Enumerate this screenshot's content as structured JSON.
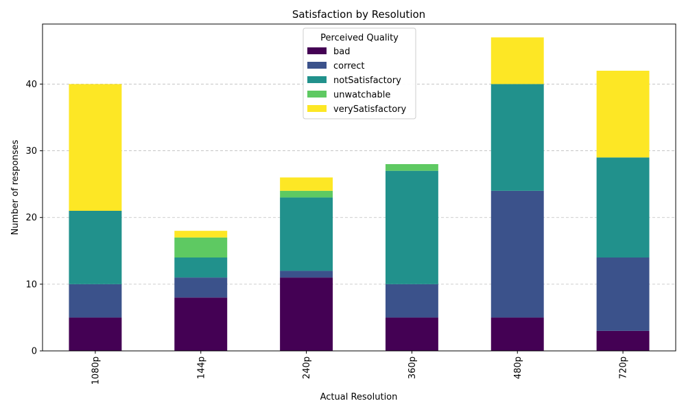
{
  "chart_data": {
    "type": "bar",
    "stacked": true,
    "title": "Satisfaction by Resolution",
    "xlabel": "Actual Resolution",
    "ylabel": "Number of responses",
    "categories": [
      "1080p",
      "144p",
      "240p",
      "360p",
      "480p",
      "720p"
    ],
    "ylim": [
      0,
      49
    ],
    "yticks": [
      0,
      10,
      20,
      30,
      40
    ],
    "grid": "horizontal dashed",
    "legend": {
      "title": "Perceived Quality",
      "placement": "top-center"
    },
    "series": [
      {
        "name": "bad",
        "color": "#440154",
        "values": [
          5,
          8,
          11,
          5,
          5,
          3
        ]
      },
      {
        "name": "correct",
        "color": "#3b528b",
        "values": [
          5,
          3,
          1,
          5,
          19,
          11
        ]
      },
      {
        "name": "notSatisfactory",
        "color": "#21918c",
        "values": [
          11,
          3,
          11,
          17,
          16,
          15
        ]
      },
      {
        "name": "unwatchable",
        "color": "#5ec962",
        "values": [
          0,
          3,
          1,
          1,
          0,
          0
        ]
      },
      {
        "name": "verySatisfactory",
        "color": "#fde725",
        "values": [
          19,
          1,
          2,
          0,
          7,
          13
        ]
      }
    ]
  }
}
